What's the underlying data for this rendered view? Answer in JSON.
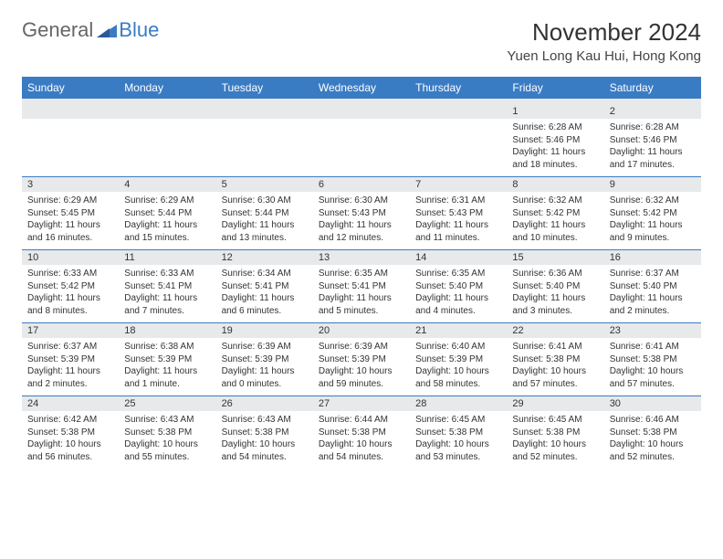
{
  "brand": {
    "part1": "General",
    "part2": "Blue"
  },
  "title": "November 2024",
  "location": "Yuen Long Kau Hui, Hong Kong",
  "colors": {
    "header_bg": "#3a7cc4",
    "header_text": "#ffffff",
    "daynum_bg": "#e7e9eb",
    "divider": "#3a7cc4",
    "body_text": "#333333",
    "page_bg": "#ffffff"
  },
  "typography": {
    "title_fontsize": 26,
    "location_fontsize": 15,
    "header_cell_fontsize": 12,
    "daynum_fontsize": 11,
    "detail_fontsize": 10
  },
  "weekdays": [
    "Sunday",
    "Monday",
    "Tuesday",
    "Wednesday",
    "Thursday",
    "Friday",
    "Saturday"
  ],
  "weeks": [
    [
      null,
      null,
      null,
      null,
      null,
      {
        "n": "1",
        "sunrise": "Sunrise: 6:28 AM",
        "sunset": "Sunset: 5:46 PM",
        "day1": "Daylight: 11 hours",
        "day2": "and 18 minutes."
      },
      {
        "n": "2",
        "sunrise": "Sunrise: 6:28 AM",
        "sunset": "Sunset: 5:46 PM",
        "day1": "Daylight: 11 hours",
        "day2": "and 17 minutes."
      }
    ],
    [
      {
        "n": "3",
        "sunrise": "Sunrise: 6:29 AM",
        "sunset": "Sunset: 5:45 PM",
        "day1": "Daylight: 11 hours",
        "day2": "and 16 minutes."
      },
      {
        "n": "4",
        "sunrise": "Sunrise: 6:29 AM",
        "sunset": "Sunset: 5:44 PM",
        "day1": "Daylight: 11 hours",
        "day2": "and 15 minutes."
      },
      {
        "n": "5",
        "sunrise": "Sunrise: 6:30 AM",
        "sunset": "Sunset: 5:44 PM",
        "day1": "Daylight: 11 hours",
        "day2": "and 13 minutes."
      },
      {
        "n": "6",
        "sunrise": "Sunrise: 6:30 AM",
        "sunset": "Sunset: 5:43 PM",
        "day1": "Daylight: 11 hours",
        "day2": "and 12 minutes."
      },
      {
        "n": "7",
        "sunrise": "Sunrise: 6:31 AM",
        "sunset": "Sunset: 5:43 PM",
        "day1": "Daylight: 11 hours",
        "day2": "and 11 minutes."
      },
      {
        "n": "8",
        "sunrise": "Sunrise: 6:32 AM",
        "sunset": "Sunset: 5:42 PM",
        "day1": "Daylight: 11 hours",
        "day2": "and 10 minutes."
      },
      {
        "n": "9",
        "sunrise": "Sunrise: 6:32 AM",
        "sunset": "Sunset: 5:42 PM",
        "day1": "Daylight: 11 hours",
        "day2": "and 9 minutes."
      }
    ],
    [
      {
        "n": "10",
        "sunrise": "Sunrise: 6:33 AM",
        "sunset": "Sunset: 5:42 PM",
        "day1": "Daylight: 11 hours",
        "day2": "and 8 minutes."
      },
      {
        "n": "11",
        "sunrise": "Sunrise: 6:33 AM",
        "sunset": "Sunset: 5:41 PM",
        "day1": "Daylight: 11 hours",
        "day2": "and 7 minutes."
      },
      {
        "n": "12",
        "sunrise": "Sunrise: 6:34 AM",
        "sunset": "Sunset: 5:41 PM",
        "day1": "Daylight: 11 hours",
        "day2": "and 6 minutes."
      },
      {
        "n": "13",
        "sunrise": "Sunrise: 6:35 AM",
        "sunset": "Sunset: 5:41 PM",
        "day1": "Daylight: 11 hours",
        "day2": "and 5 minutes."
      },
      {
        "n": "14",
        "sunrise": "Sunrise: 6:35 AM",
        "sunset": "Sunset: 5:40 PM",
        "day1": "Daylight: 11 hours",
        "day2": "and 4 minutes."
      },
      {
        "n": "15",
        "sunrise": "Sunrise: 6:36 AM",
        "sunset": "Sunset: 5:40 PM",
        "day1": "Daylight: 11 hours",
        "day2": "and 3 minutes."
      },
      {
        "n": "16",
        "sunrise": "Sunrise: 6:37 AM",
        "sunset": "Sunset: 5:40 PM",
        "day1": "Daylight: 11 hours",
        "day2": "and 2 minutes."
      }
    ],
    [
      {
        "n": "17",
        "sunrise": "Sunrise: 6:37 AM",
        "sunset": "Sunset: 5:39 PM",
        "day1": "Daylight: 11 hours",
        "day2": "and 2 minutes."
      },
      {
        "n": "18",
        "sunrise": "Sunrise: 6:38 AM",
        "sunset": "Sunset: 5:39 PM",
        "day1": "Daylight: 11 hours",
        "day2": "and 1 minute."
      },
      {
        "n": "19",
        "sunrise": "Sunrise: 6:39 AM",
        "sunset": "Sunset: 5:39 PM",
        "day1": "Daylight: 11 hours",
        "day2": "and 0 minutes."
      },
      {
        "n": "20",
        "sunrise": "Sunrise: 6:39 AM",
        "sunset": "Sunset: 5:39 PM",
        "day1": "Daylight: 10 hours",
        "day2": "and 59 minutes."
      },
      {
        "n": "21",
        "sunrise": "Sunrise: 6:40 AM",
        "sunset": "Sunset: 5:39 PM",
        "day1": "Daylight: 10 hours",
        "day2": "and 58 minutes."
      },
      {
        "n": "22",
        "sunrise": "Sunrise: 6:41 AM",
        "sunset": "Sunset: 5:38 PM",
        "day1": "Daylight: 10 hours",
        "day2": "and 57 minutes."
      },
      {
        "n": "23",
        "sunrise": "Sunrise: 6:41 AM",
        "sunset": "Sunset: 5:38 PM",
        "day1": "Daylight: 10 hours",
        "day2": "and 57 minutes."
      }
    ],
    [
      {
        "n": "24",
        "sunrise": "Sunrise: 6:42 AM",
        "sunset": "Sunset: 5:38 PM",
        "day1": "Daylight: 10 hours",
        "day2": "and 56 minutes."
      },
      {
        "n": "25",
        "sunrise": "Sunrise: 6:43 AM",
        "sunset": "Sunset: 5:38 PM",
        "day1": "Daylight: 10 hours",
        "day2": "and 55 minutes."
      },
      {
        "n": "26",
        "sunrise": "Sunrise: 6:43 AM",
        "sunset": "Sunset: 5:38 PM",
        "day1": "Daylight: 10 hours",
        "day2": "and 54 minutes."
      },
      {
        "n": "27",
        "sunrise": "Sunrise: 6:44 AM",
        "sunset": "Sunset: 5:38 PM",
        "day1": "Daylight: 10 hours",
        "day2": "and 54 minutes."
      },
      {
        "n": "28",
        "sunrise": "Sunrise: 6:45 AM",
        "sunset": "Sunset: 5:38 PM",
        "day1": "Daylight: 10 hours",
        "day2": "and 53 minutes."
      },
      {
        "n": "29",
        "sunrise": "Sunrise: 6:45 AM",
        "sunset": "Sunset: 5:38 PM",
        "day1": "Daylight: 10 hours",
        "day2": "and 52 minutes."
      },
      {
        "n": "30",
        "sunrise": "Sunrise: 6:46 AM",
        "sunset": "Sunset: 5:38 PM",
        "day1": "Daylight: 10 hours",
        "day2": "and 52 minutes."
      }
    ]
  ]
}
